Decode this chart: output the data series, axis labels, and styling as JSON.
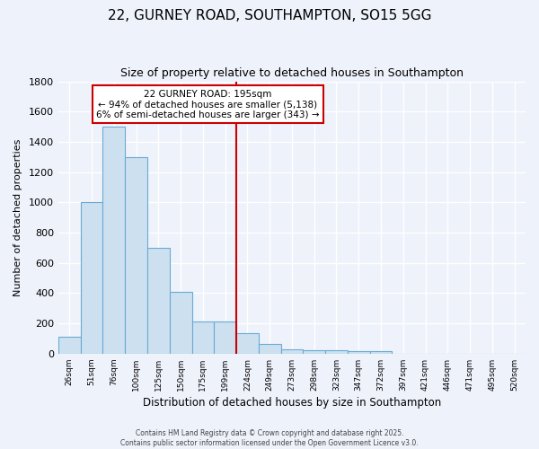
{
  "title": "22, GURNEY ROAD, SOUTHAMPTON, SO15 5GG",
  "subtitle": "Size of property relative to detached houses in Southampton",
  "xlabel": "Distribution of detached houses by size in Southampton",
  "ylabel": "Number of detached properties",
  "categories": [
    "26sqm",
    "51sqm",
    "76sqm",
    "100sqm",
    "125sqm",
    "150sqm",
    "175sqm",
    "199sqm",
    "224sqm",
    "249sqm",
    "273sqm",
    "298sqm",
    "323sqm",
    "347sqm",
    "372sqm",
    "397sqm",
    "421sqm",
    "446sqm",
    "471sqm",
    "495sqm",
    "520sqm"
  ],
  "values": [
    110,
    1000,
    1500,
    1300,
    700,
    410,
    215,
    215,
    135,
    65,
    30,
    25,
    20,
    15,
    15,
    0,
    0,
    0,
    0,
    0,
    0
  ],
  "bar_color": "#cce0f0",
  "bar_edge_color": "#6aaad4",
  "vline_index": 7,
  "vline_color": "#cc0000",
  "annotation_title": "22 GURNEY ROAD: 195sqm",
  "annotation_line1": "← 94% of detached houses are smaller (5,138)",
  "annotation_line2": "6% of semi-detached houses are larger (343) →",
  "annotation_box_facecolor": "#ffffff",
  "annotation_box_edgecolor": "#cc0000",
  "ylim": [
    0,
    1800
  ],
  "yticks": [
    0,
    200,
    400,
    600,
    800,
    1000,
    1200,
    1400,
    1600,
    1800
  ],
  "bg_color": "#eef2fb",
  "grid_color": "#ffffff",
  "footer_line1": "Contains HM Land Registry data © Crown copyright and database right 2025.",
  "footer_line2": "Contains public sector information licensed under the Open Government Licence v3.0."
}
